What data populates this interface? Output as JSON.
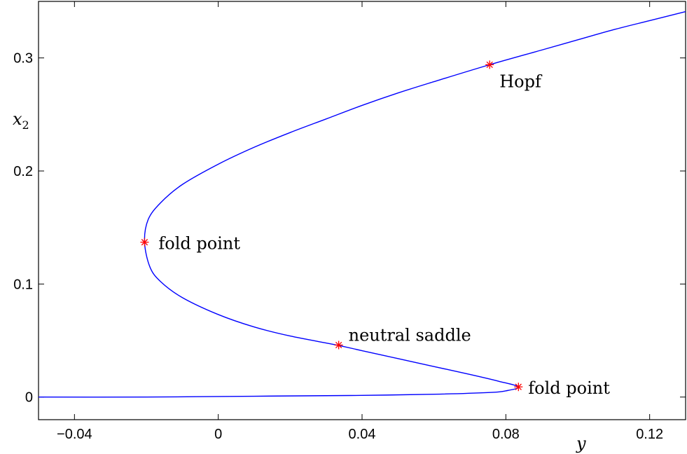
{
  "chart_data": {
    "type": "line",
    "title": "",
    "xlabel": "y",
    "ylabel": "x2",
    "ylabel_base": "x",
    "ylabel_sub": "2",
    "xlim": [
      -0.05,
      0.13
    ],
    "ylim": [
      -0.02,
      0.35
    ],
    "xticks": [
      -0.04,
      0,
      0.04,
      0.08,
      0.12
    ],
    "xtick_labels": [
      "−0.04",
      "0",
      "0.04",
      "0.08",
      "0.12"
    ],
    "yticks": [
      0,
      0.1,
      0.2,
      0.3
    ],
    "ytick_labels": [
      "0",
      "0.1",
      "0.2",
      "0.3"
    ],
    "grid": false,
    "line_color": "#0000ff",
    "marker_color": "#ff0000",
    "series": [
      {
        "x": [
          -0.05,
          -0.02,
          0.0,
          0.02,
          0.04,
          0.06,
          0.075,
          0.08,
          0.0835,
          0.078,
          0.07,
          0.06,
          0.05,
          0.04,
          0.033,
          0.02,
          0.01,
          0.0,
          -0.01,
          -0.016,
          -0.019,
          -0.0205,
          -0.0195,
          -0.016,
          -0.01,
          0.0,
          0.01,
          0.02,
          0.03,
          0.04,
          0.05,
          0.06,
          0.0755,
          0.09,
          0.1,
          0.11,
          0.12,
          0.13
        ],
        "y": [
          0.0,
          0.0,
          0.0005,
          0.001,
          0.0015,
          0.0025,
          0.004,
          0.0055,
          0.009,
          0.014,
          0.02,
          0.027,
          0.034,
          0.041,
          0.046,
          0.054,
          0.062,
          0.073,
          0.088,
          0.102,
          0.115,
          0.137,
          0.157,
          0.172,
          0.188,
          0.206,
          0.221,
          0.234,
          0.246,
          0.258,
          0.269,
          0.279,
          0.294,
          0.307,
          0.316,
          0.325,
          0.333,
          0.341
        ]
      }
    ],
    "points": [
      {
        "x": 0.0755,
        "y": 0.294,
        "label": "Hopf"
      },
      {
        "x": -0.0205,
        "y": 0.137,
        "label": "fold point"
      },
      {
        "x": 0.0335,
        "y": 0.046,
        "label": "neutral saddle"
      },
      {
        "x": 0.0835,
        "y": 0.009,
        "label": "fold point"
      }
    ]
  }
}
